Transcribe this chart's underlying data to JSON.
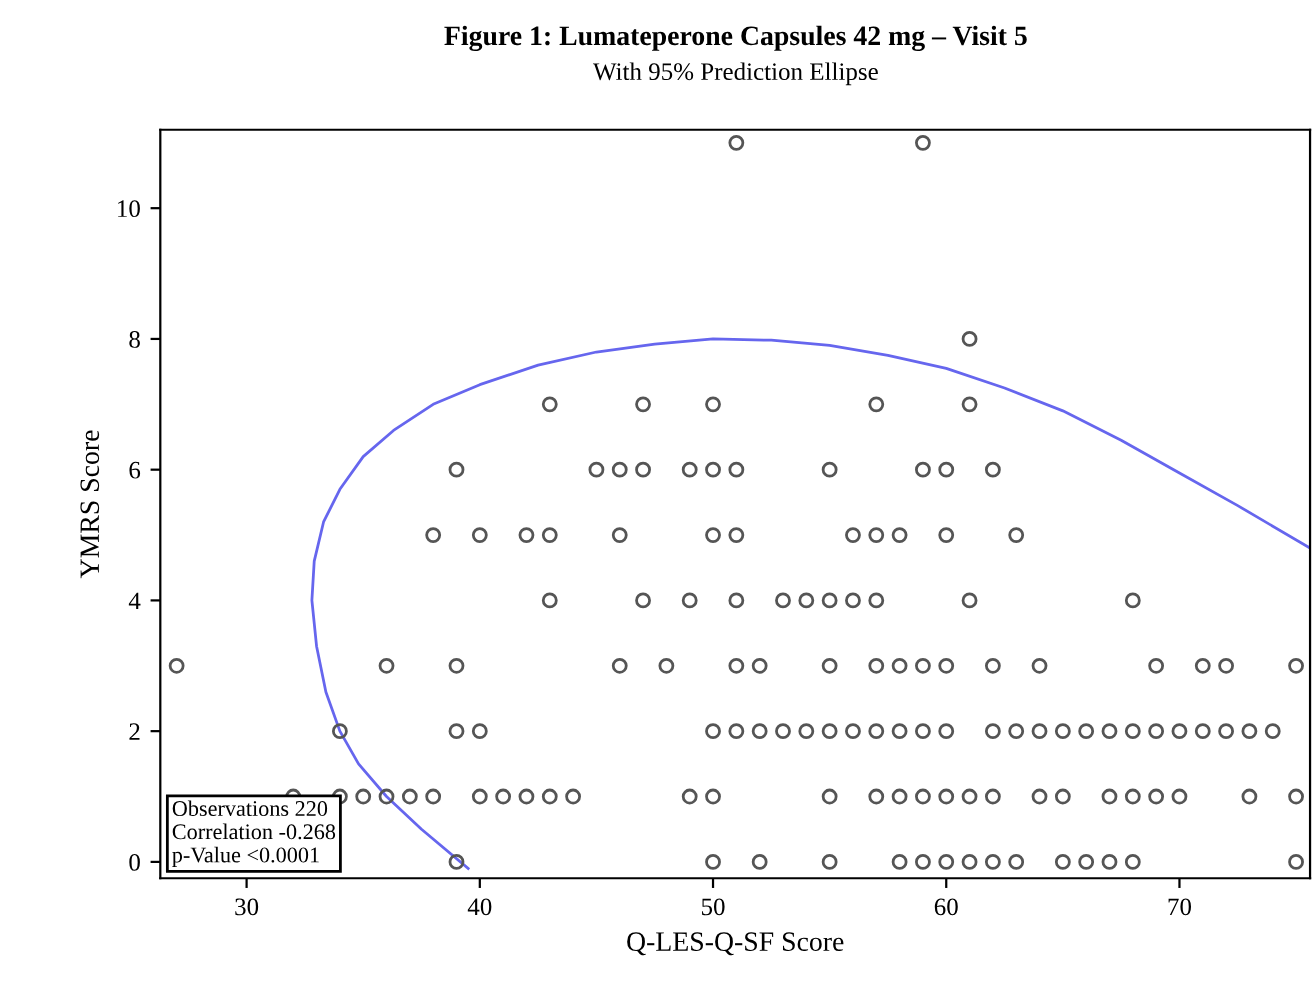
{
  "chart_data": {
    "type": "scatter",
    "title": "Figure 1: Lumateperone Capsules 42 mg – Visit 5",
    "subtitle": "With 95% Prediction Ellipse",
    "xlabel": "Q-LES-Q-SF Score",
    "ylabel": "YMRS Score",
    "xlim": [
      26.3,
      75.6
    ],
    "ylim": [
      -0.25,
      11.2
    ],
    "xticks": [
      30,
      40,
      50,
      60,
      70
    ],
    "yticks": [
      0,
      2,
      4,
      6,
      8,
      10
    ],
    "grid": false,
    "series": [
      {
        "marker": "circle",
        "color": "#555555",
        "x": [
          39,
          50,
          52,
          55,
          58,
          59,
          60,
          61,
          62,
          63,
          65,
          66,
          67,
          68,
          75,
          32,
          34,
          35,
          36,
          37,
          38,
          40,
          41,
          42,
          43,
          44,
          49,
          50,
          55,
          57,
          58,
          59,
          60,
          61,
          62,
          64,
          65,
          67,
          68,
          69,
          70,
          73,
          75,
          34,
          39,
          40,
          50,
          51,
          52,
          53,
          54,
          55,
          56,
          57,
          58,
          59,
          60,
          62,
          63,
          64,
          65,
          66,
          67,
          68,
          69,
          70,
          71,
          72,
          73,
          74,
          27,
          36,
          39,
          46,
          48,
          51,
          52,
          55,
          57,
          58,
          59,
          60,
          62,
          64,
          69,
          71,
          72,
          75,
          43,
          47,
          49,
          51,
          53,
          54,
          55,
          56,
          57,
          61,
          68,
          38,
          40,
          42,
          43,
          46,
          50,
          51,
          56,
          57,
          58,
          60,
          63,
          39,
          45,
          46,
          47,
          49,
          50,
          51,
          55,
          59,
          60,
          62,
          43,
          47,
          50,
          57,
          61,
          61,
          51,
          59
        ],
        "values": [
          0,
          0,
          0,
          0,
          0,
          0,
          0,
          0,
          0,
          0,
          0,
          0,
          0,
          0,
          0,
          1,
          1,
          1,
          1,
          1,
          1,
          1,
          1,
          1,
          1,
          1,
          1,
          1,
          1,
          1,
          1,
          1,
          1,
          1,
          1,
          1,
          1,
          1,
          1,
          1,
          1,
          1,
          1,
          2,
          2,
          2,
          2,
          2,
          2,
          2,
          2,
          2,
          2,
          2,
          2,
          2,
          2,
          2,
          2,
          2,
          2,
          2,
          2,
          2,
          2,
          2,
          2,
          2,
          2,
          2,
          3,
          3,
          3,
          3,
          3,
          3,
          3,
          3,
          3,
          3,
          3,
          3,
          3,
          3,
          3,
          3,
          3,
          3,
          4,
          4,
          4,
          4,
          4,
          4,
          4,
          4,
          4,
          4,
          4,
          5,
          5,
          5,
          5,
          5,
          5,
          5,
          5,
          5,
          5,
          5,
          5,
          6,
          6,
          6,
          6,
          6,
          6,
          6,
          6,
          6,
          6,
          6,
          7,
          7,
          7,
          7,
          7,
          8,
          11,
          11
        ]
      },
      {
        "type": "line",
        "marker": "none",
        "color": "#6666ee",
        "x": [
          39.5,
          37.5,
          36,
          34.8,
          34,
          33.4,
          33,
          32.8,
          32.9,
          33.3,
          34,
          35,
          36.3,
          38,
          40,
          42.5,
          45,
          47.5,
          50,
          52.5,
          55,
          57.5,
          60,
          62.5,
          65,
          67.5,
          70,
          72.5,
          75.6
        ],
        "values": [
          -0.1,
          0.5,
          1,
          1.5,
          2,
          2.6,
          3.3,
          4,
          4.6,
          5.2,
          5.7,
          6.2,
          6.6,
          7,
          7.3,
          7.6,
          7.8,
          7.92,
          8,
          7.98,
          7.9,
          7.75,
          7.55,
          7.25,
          6.9,
          6.45,
          5.95,
          5.45,
          4.8
        ]
      }
    ],
    "annotations": [
      "Observations 220",
      "Correlation -0.268",
      "p-Value <0.0001"
    ]
  }
}
